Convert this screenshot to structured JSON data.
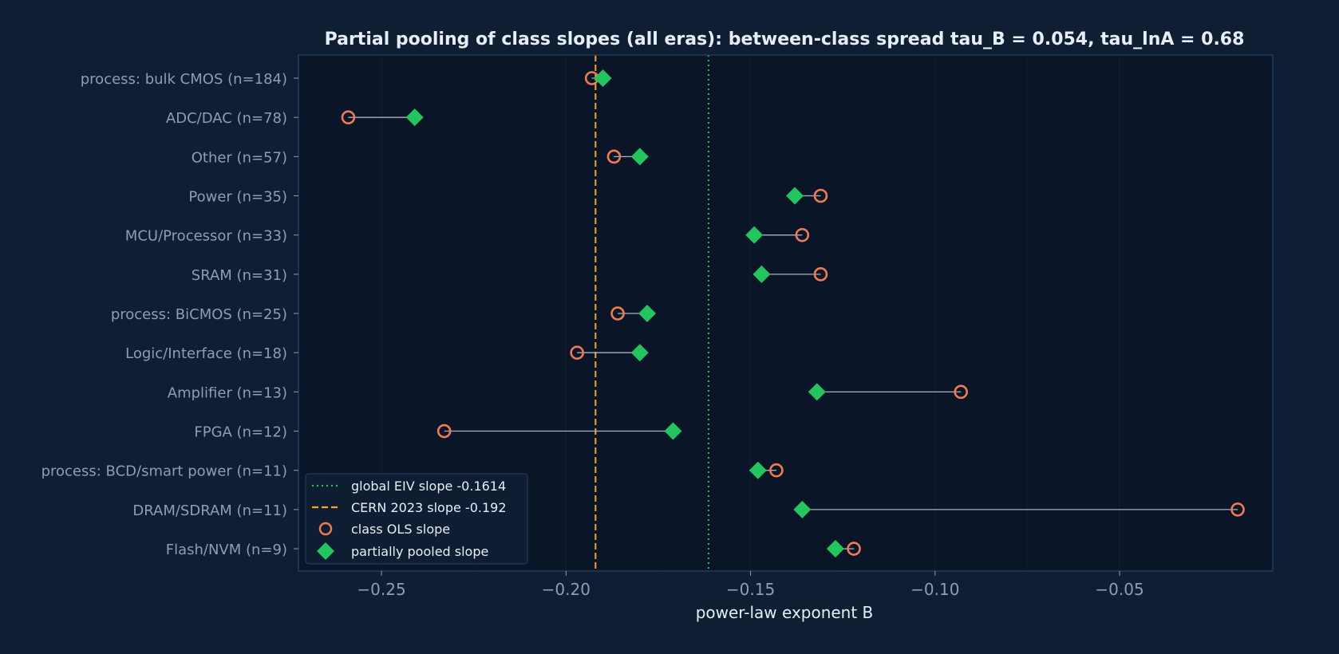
{
  "colors": {
    "figure_bg": "#0f1e33",
    "plot_bg": "#0a1628",
    "frame": "#243a5a",
    "grid": "#243650",
    "text_title": "#e8eef6",
    "text_label": "#8e9db0",
    "text_axis": "#e8eef6",
    "ols": "#f07a52",
    "pooled": "#22c55e",
    "connector": "#a7b1bf",
    "global_line": "#22c55e",
    "cern_line": "#f5a623",
    "legend_bg": "#0f1e33",
    "legend_border": "#2a4062",
    "legend_text": "#e8eef6"
  },
  "chart_data": {
    "type": "scatter",
    "title": "Partial pooling of class slopes (all eras): between-class spread tau_B = 0.054, tau_lnA = 0.68",
    "xlabel": "power-law exponent B",
    "ylabel": "",
    "xlim": [
      -0.2725,
      -0.0085
    ],
    "xticks": [
      -0.25,
      -0.2,
      -0.15,
      -0.1,
      -0.05
    ],
    "xtick_labels": [
      "−0.25",
      "−0.20",
      "−0.15",
      "−0.10",
      "−0.05"
    ],
    "grid": "x-axis dotted",
    "legend_position": "lower-left",
    "categories": [
      "process: bulk CMOS (n=184)",
      "ADC/DAC (n=78)",
      "Other (n=57)",
      "Power (n=35)",
      "MCU/Processor (n=33)",
      "SRAM (n=31)",
      "process: BiCMOS (n=25)",
      "Logic/Interface (n=18)",
      "Amplifier (n=13)",
      "FPGA (n=12)",
      "process: BCD/smart power (n=11)",
      "DRAM/SDRAM (n=11)",
      "Flash/NVM (n=9)"
    ],
    "series": [
      {
        "name": "class OLS slope",
        "marker": "open-circle",
        "values": [
          -0.193,
          -0.259,
          -0.187,
          -0.131,
          -0.136,
          -0.131,
          -0.186,
          -0.197,
          -0.093,
          -0.233,
          -0.143,
          -0.018,
          -0.122
        ]
      },
      {
        "name": "partially pooled slope",
        "marker": "diamond",
        "values": [
          -0.19,
          -0.241,
          -0.18,
          -0.138,
          -0.149,
          -0.147,
          -0.178,
          -0.18,
          -0.132,
          -0.171,
          -0.148,
          -0.136,
          -0.127
        ]
      }
    ],
    "reference_lines": [
      {
        "name": "global EIV slope -0.1614",
        "value": -0.1614,
        "style": "dotted"
      },
      {
        "name": "CERN 2023 slope -0.192",
        "value": -0.192,
        "style": "dashed"
      }
    ]
  }
}
